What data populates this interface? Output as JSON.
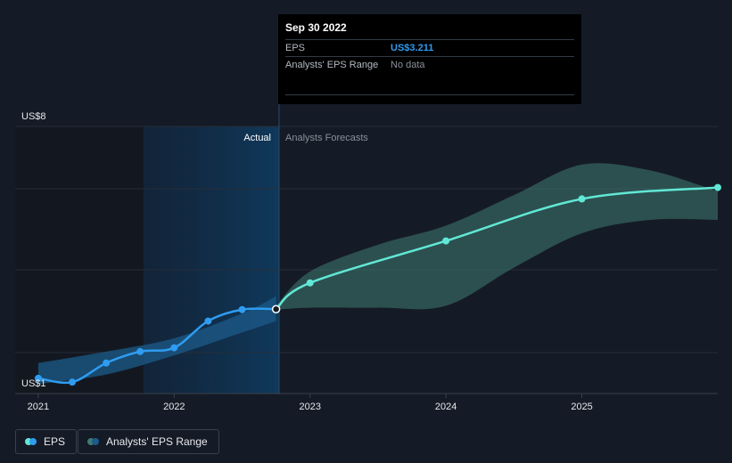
{
  "tooltip": {
    "date": "Sep 30 2022",
    "eps_label": "EPS",
    "eps_value": "US$3.211",
    "range_label": "Analysts' EPS Range",
    "range_value": "No data"
  },
  "labels": {
    "actual": "Actual",
    "forecast": "Analysts Forecasts"
  },
  "legend": {
    "eps": "EPS",
    "range": "Analysts' EPS Range"
  },
  "colors": {
    "eps_line": "#2f9cf0",
    "forecast_line": "#61e8d6",
    "range_band": "#3f7b72",
    "actual_band": "#1c5b8a",
    "highlight": "#0f3a5e"
  },
  "chart_data": {
    "type": "line",
    "title": "",
    "xlabel": "",
    "ylabel": "",
    "ylim": [
      1,
      8
    ],
    "y_tick_labels": [
      "US$1",
      "US$8"
    ],
    "x_tick_labels": [
      "2021",
      "2022",
      "2023",
      "2024",
      "2025"
    ],
    "x_ticks": [
      2021.0,
      2022.0,
      2023.0,
      2024.0,
      2025.0
    ],
    "xlim": [
      2020.83,
      2026.0
    ],
    "actual_end": 2022.75,
    "series": [
      {
        "name": "EPS",
        "x": [
          2021.0,
          2021.25,
          2021.5,
          2021.75,
          2022.0,
          2022.25,
          2022.5,
          2022.75
        ],
        "y": [
          1.4,
          1.3,
          1.8,
          2.1,
          2.2,
          2.9,
          3.2,
          3.211
        ]
      },
      {
        "name": "EPS Forecast",
        "x": [
          2022.75,
          2023.0,
          2024.0,
          2025.0,
          2026.0
        ],
        "y": [
          3.211,
          3.9,
          5.0,
          6.1,
          6.4
        ]
      }
    ],
    "range_bands": [
      {
        "name": "Analysts' EPS Range",
        "x": [
          2022.75,
          2023.0,
          2023.5,
          2024.0,
          2024.5,
          2025.0,
          2025.5,
          2026.0
        ],
        "low": [
          3.2,
          3.25,
          3.25,
          3.3,
          4.3,
          5.2,
          5.55,
          5.55
        ],
        "high": [
          3.3,
          4.2,
          4.9,
          5.4,
          6.2,
          7.0,
          6.85,
          6.3
        ]
      },
      {
        "name": "Actual EPS Range",
        "x": [
          2021.0,
          2021.5,
          2022.0,
          2022.5,
          2022.75
        ],
        "low": [
          1.25,
          1.5,
          2.0,
          2.6,
          2.9
        ],
        "high": [
          1.8,
          2.1,
          2.45,
          3.1,
          3.55
        ]
      }
    ]
  }
}
